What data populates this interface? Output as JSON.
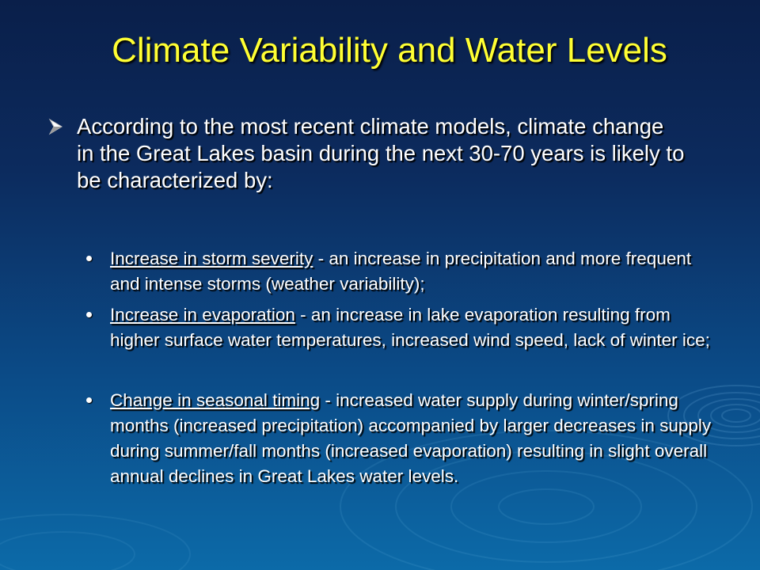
{
  "slide": {
    "title": "Climate Variability and Water Levels",
    "main_bullet": {
      "text": "According to the most recent climate models, climate change in the Great Lakes basin during the next 30-70 years is likely to be characterized by:",
      "icon": "arrow-bullet-icon"
    },
    "sub_bullets": [
      {
        "term": "Increase in storm severity",
        "description": " - an increase in precipitation and more frequent and intense storms (weather variability);"
      },
      {
        "term": "Increase in evaporation",
        "description": " - an increase in lake evaporation resulting from higher surface water temperatures, increased wind speed, lack of winter ice;"
      },
      {
        "term": "Change in seasonal timing",
        "description": " - increased water supply during winter/spring months (increased precipitation) accompanied by larger decreases in supply during summer/fall months (increased evaporation) resulting in slight overall annual declines in Great Lakes water levels."
      }
    ]
  },
  "colors": {
    "title": "#ffff33",
    "text": "#ffffff",
    "background_top": "#0a1f4a",
    "background_bottom": "#0c6aa8"
  }
}
